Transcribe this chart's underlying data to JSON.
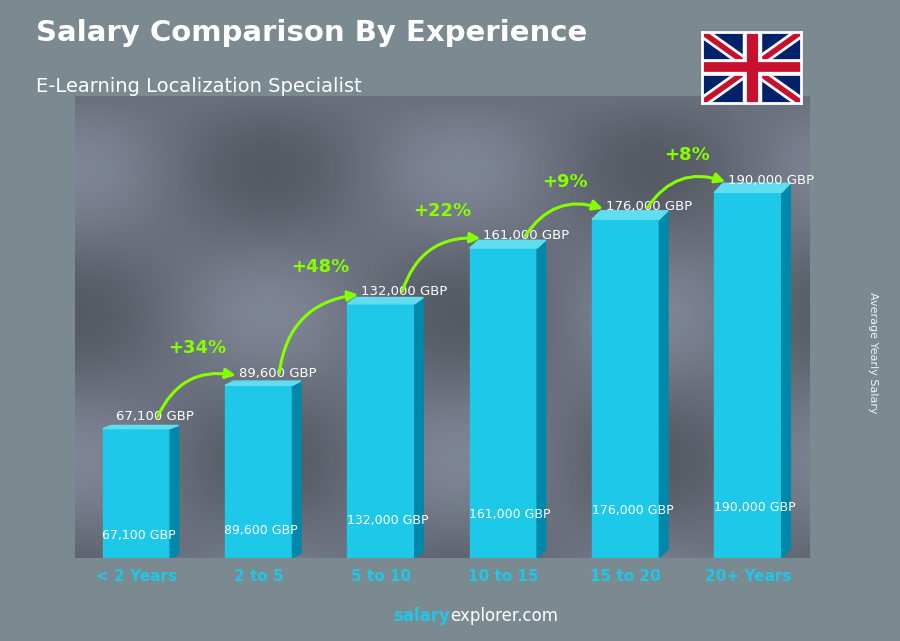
{
  "title": "Salary Comparison By Experience",
  "subtitle": "E-Learning Localization Specialist",
  "categories": [
    "< 2 Years",
    "2 to 5",
    "5 to 10",
    "10 to 15",
    "15 to 20",
    "20+ Years"
  ],
  "values": [
    67100,
    89600,
    132000,
    161000,
    176000,
    190000
  ],
  "salary_labels": [
    "67,100 GBP",
    "89,600 GBP",
    "132,000 GBP",
    "161,000 GBP",
    "176,000 GBP",
    "190,000 GBP"
  ],
  "pct_labels": [
    "+34%",
    "+48%",
    "+22%",
    "+9%",
    "+8%"
  ],
  "bar_color_main": "#1EC8E8",
  "bar_color_left": "#00A8CC",
  "bar_color_top": "#60DDEF",
  "bar_color_right": "#0088AA",
  "bg_color": "#7a8a8a",
  "title_color": "#ffffff",
  "subtitle_color": "#ffffff",
  "salary_label_color": "#ffffff",
  "pct_color": "#88FF00",
  "xlabel_color": "#1EC8E8",
  "ylabel_text": "Average Yearly Salary",
  "footer_salary": "salary",
  "footer_rest": "explorer.com",
  "ylim_max": 240000,
  "bar_width": 0.55
}
